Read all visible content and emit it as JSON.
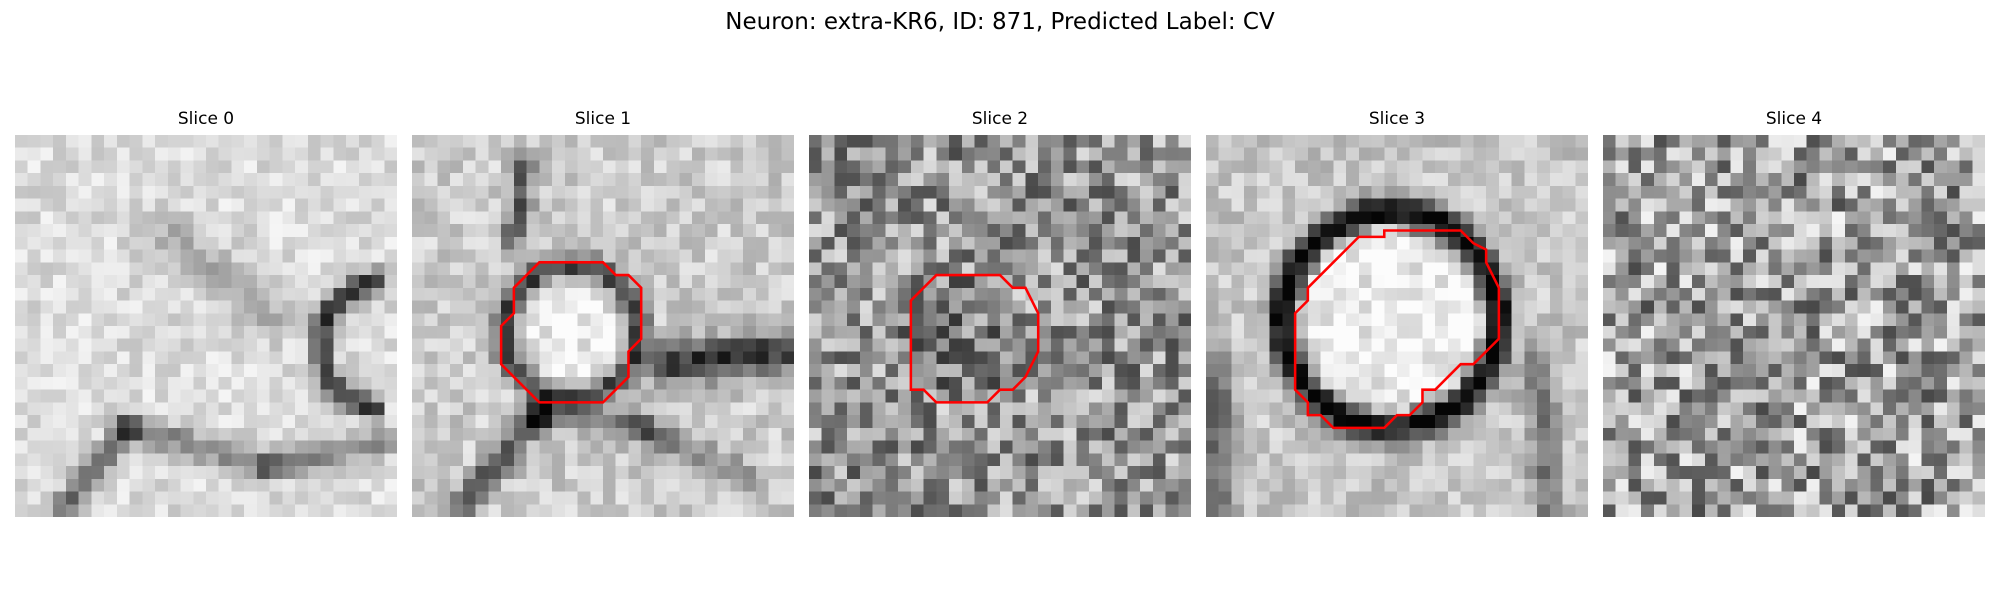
{
  "figure": {
    "title": "Neuron: extra-KR6, ID: 871, Predicted Label: CV"
  },
  "panels": [
    {
      "title": "Slice 0",
      "image": "grayscale microscopy patch, curved dark membrane at right",
      "has_contour": false
    },
    {
      "title": "Slice 1",
      "image": "grayscale microscopy patch, round vesicle with dark rim",
      "has_contour": true
    },
    {
      "title": "Slice 2",
      "image": "noisy grayscale microscopy patch",
      "has_contour": true
    },
    {
      "title": "Slice 3",
      "image": "grayscale microscopy patch, large bright vesicle with thick dark ring",
      "has_contour": true
    },
    {
      "title": "Slice 4",
      "image": "noisy grayscale microscopy patch",
      "has_contour": false
    }
  ],
  "colors": {
    "contour": "#ff0000",
    "background": "#ffffff"
  }
}
